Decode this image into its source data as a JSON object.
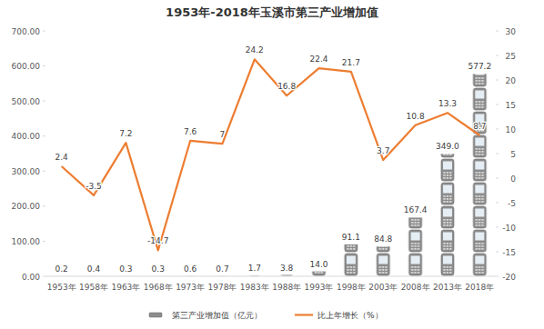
{
  "chart_data": {
    "type": "bar",
    "title": "1953年-2018年玉溪市第三产业增加值",
    "categories": [
      "1953年",
      "1958年",
      "1963年",
      "1968年",
      "1973年",
      "1978年",
      "1983年",
      "1988年",
      "1993年",
      "1998年",
      "2003年",
      "2008年",
      "2013年",
      "2018年"
    ],
    "series": [
      {
        "name": "第三产业增加值（亿元）",
        "type": "bar",
        "color": "#8c8c8c",
        "values": [
          0.2,
          0.4,
          0.3,
          0.3,
          0.6,
          0.7,
          1.7,
          3.8,
          14.0,
          91.1,
          84.8,
          167.4,
          349.0,
          577.2
        ],
        "value_labels": [
          "0.2",
          "0.4",
          "0.3",
          "0.3",
          "0.6",
          "0.7",
          "1.7",
          "3.8",
          "14.0",
          "91.1",
          "84.8",
          "167.4",
          "349.0",
          "577.2"
        ]
      },
      {
        "name": "比上年增长（%）",
        "type": "line",
        "axis": "y2",
        "color": "#ed7d31",
        "marker": "none",
        "values": [
          2.4,
          -3.5,
          7.2,
          -14.7,
          7.6,
          7,
          24.2,
          16.8,
          22.4,
          21.7,
          3.7,
          10.8,
          13.3,
          8.7
        ]
      }
    ],
    "ylim": [
      0,
      700
    ],
    "yticks": [
      {
        "value": 0,
        "label": "0.00"
      },
      {
        "value": 100,
        "label": "100.00"
      },
      {
        "value": 200,
        "label": "200.00"
      },
      {
        "value": 300,
        "label": "300.00"
      },
      {
        "value": 400,
        "label": "400.00"
      },
      {
        "value": 500,
        "label": "500.00"
      },
      {
        "value": 600,
        "label": "600.00"
      },
      {
        "value": 700,
        "label": "700.00"
      }
    ],
    "y2lim": [
      -20,
      30
    ],
    "y2ticks": [
      -20,
      -15,
      -10,
      -5,
      0,
      5,
      10,
      15,
      20,
      25,
      30
    ],
    "grid": false,
    "legend": "bottom",
    "data_labels": true
  }
}
